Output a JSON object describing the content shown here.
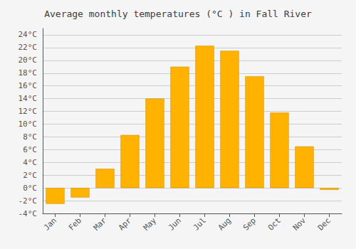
{
  "chart_data": {
    "type": "bar",
    "title": "Average monthly temperatures (°C ) in Fall River",
    "categories": [
      "Jan",
      "Feb",
      "Mar",
      "Apr",
      "May",
      "Jun",
      "Jul",
      "Aug",
      "Sep",
      "Oct",
      "Nov",
      "Dec"
    ],
    "values": [
      -2.5,
      -1.5,
      3.0,
      8.3,
      14.0,
      19.0,
      22.3,
      21.5,
      17.5,
      11.8,
      6.5,
      -0.3
    ],
    "color": "#FFB300",
    "ylim": [
      -4,
      25
    ],
    "yticks": [
      {
        "value": -4,
        "label": "-4°C"
      },
      {
        "value": -2,
        "label": "-2°C"
      },
      {
        "value": 0,
        "label": "0°C"
      },
      {
        "value": 2,
        "label": "2°C"
      },
      {
        "value": 4,
        "label": "4°C"
      },
      {
        "value": 6,
        "label": "6°C"
      },
      {
        "value": 8,
        "label": "8°C"
      },
      {
        "value": 10,
        "label": "10°C"
      },
      {
        "value": 12,
        "label": "12°C"
      },
      {
        "value": 14,
        "label": "14°C"
      },
      {
        "value": 16,
        "label": "16°C"
      },
      {
        "value": 18,
        "label": "18°C"
      },
      {
        "value": 20,
        "label": "20°C"
      },
      {
        "value": 22,
        "label": "22°C"
      },
      {
        "value": 24,
        "label": "24°C"
      }
    ],
    "grid": true
  }
}
